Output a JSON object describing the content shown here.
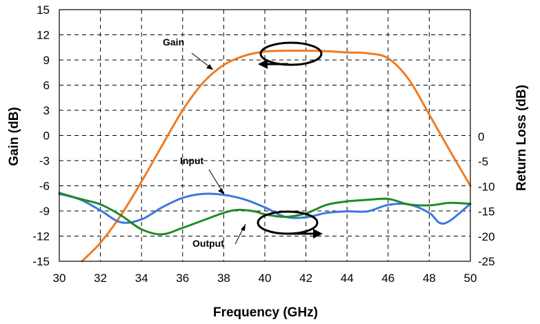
{
  "chart_data": {
    "type": "line",
    "xlabel": "Frequency (GHz)",
    "ylabel": "Gain (dB)",
    "y2label": "Return Loss  (dB)",
    "xlim": [
      30,
      50
    ],
    "ylim": [
      -15,
      15
    ],
    "y2lim": [
      -25,
      0
    ],
    "x_ticks": [
      "30",
      "32",
      "34",
      "36",
      "38",
      "40",
      "42",
      "44",
      "46",
      "48",
      "50"
    ],
    "y_ticks": [
      "15",
      "12",
      "9",
      "6",
      "3",
      "0",
      "-3",
      "-6",
      "-9",
      "-12",
      "-15"
    ],
    "y2_ticks": [
      "0",
      "-5",
      "-10",
      "-15",
      "-20",
      "-25"
    ],
    "grid": true,
    "series": [
      {
        "name": "Gain",
        "axis": "left",
        "color": "#f07b22",
        "x": [
          31.1,
          32,
          33,
          34,
          35,
          36,
          37,
          38,
          39,
          40,
          41,
          42,
          43,
          44,
          45,
          46,
          47,
          48,
          49,
          50
        ],
        "y": [
          -15,
          -12.8,
          -9.5,
          -5.5,
          -1.2,
          3,
          6.3,
          8.4,
          9.5,
          10,
          10.1,
          10.1,
          10.05,
          9.9,
          9.8,
          9.2,
          6.7,
          2.5,
          -1.8,
          -6
        ]
      },
      {
        "name": "Input",
        "axis": "right",
        "color": "#3a78e0",
        "x": [
          30,
          31,
          32,
          33,
          34,
          35,
          36,
          37,
          38,
          39,
          40,
          41,
          42,
          43,
          44,
          45,
          46,
          47,
          48,
          48.5,
          49,
          50
        ],
        "y": [
          -11.5,
          -12.6,
          -14.8,
          -17.2,
          -16.6,
          -14.2,
          -12.3,
          -11.5,
          -11.7,
          -12.6,
          -14.2,
          -16.1,
          -16.2,
          -15.3,
          -15,
          -15,
          -13.7,
          -13.6,
          -15.3,
          -17.3,
          -16.9,
          -13.5
        ]
      },
      {
        "name": "Output",
        "axis": "right",
        "color": "#1f8a24",
        "x": [
          30,
          31,
          32,
          33,
          34,
          35,
          36,
          37,
          38,
          38.7,
          39.5,
          40,
          41,
          42,
          43,
          44,
          45,
          46,
          47,
          48,
          49,
          50
        ],
        "y": [
          -11.3,
          -12.5,
          -13.6,
          -15.8,
          -18.6,
          -19.6,
          -18.3,
          -16.8,
          -15.3,
          -14.7,
          -15,
          -15.6,
          -16.1,
          -15.4,
          -13.7,
          -13,
          -12.7,
          -12.5,
          -13.6,
          -13.8,
          -13.3,
          -13.5
        ]
      }
    ],
    "annotations": [
      "Gain",
      "Input",
      "Output"
    ]
  }
}
